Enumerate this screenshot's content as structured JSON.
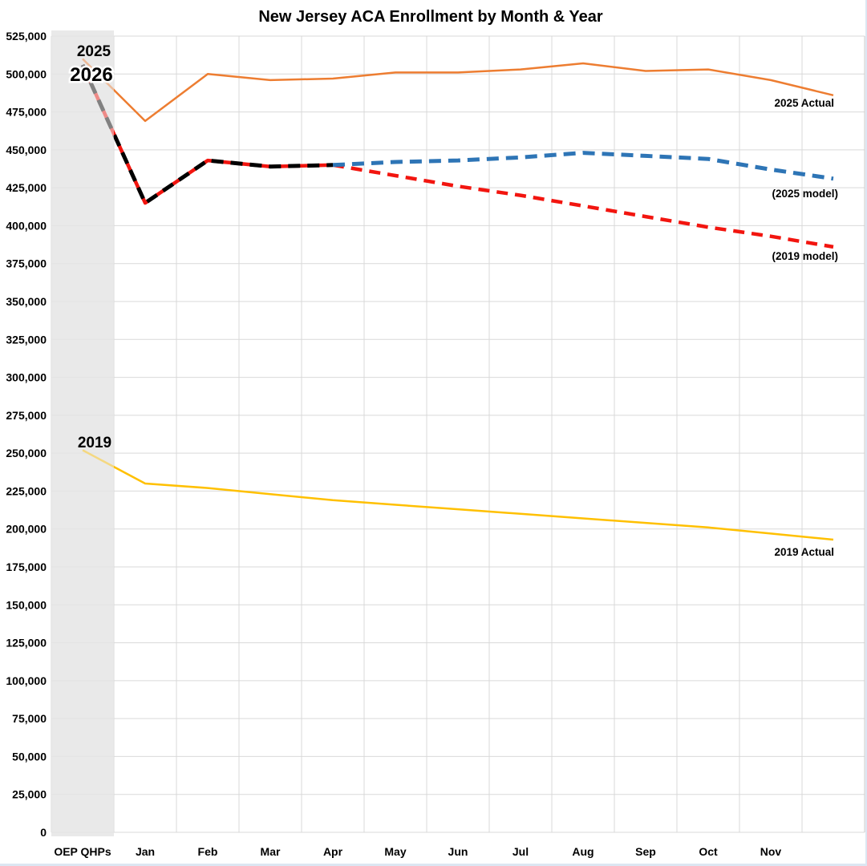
{
  "title": "New Jersey ACA Enrollment by Month & Year",
  "chart_data": {
    "type": "line",
    "title": "New Jersey ACA Enrollment by Month & Year",
    "xlabel": "",
    "ylabel": "",
    "ylim": [
      0,
      525000
    ],
    "ytick_step": 25000,
    "grid": true,
    "legend_position": "none",
    "highlight_band": {
      "category": "OEP QHPs",
      "color": "#e6e6e6"
    },
    "categories": [
      "OEP QHPs",
      "Jan",
      "Feb",
      "Mar",
      "Apr",
      "May",
      "Jun",
      "Jul",
      "Aug",
      "Sep",
      "Oct",
      "Nov",
      ""
    ],
    "y_ticks": [
      "0",
      "25,000",
      "50,000",
      "75,000",
      "100,000",
      "125,000",
      "150,000",
      "175,000",
      "200,000",
      "225,000",
      "250,000",
      "275,000",
      "300,000",
      "325,000",
      "350,000",
      "375,000",
      "400,000",
      "425,000",
      "450,000",
      "475,000",
      "500,000",
      "525,000"
    ],
    "series": [
      {
        "name": "2019-model",
        "label": "(2019 model)",
        "color": "#f2150f",
        "dash": true,
        "width": 4.5,
        "solid_until": 4,
        "values": [
          506000,
          415000,
          443000,
          439000,
          440000,
          433000,
          426000,
          420000,
          413000,
          406000,
          399000,
          393000,
          386000
        ]
      },
      {
        "name": "2025-model",
        "label": "(2025 model)",
        "color": "#2e75b6",
        "dash": true,
        "width": 5,
        "values": [
          null,
          null,
          null,
          null,
          440000,
          442000,
          443000,
          445000,
          448000,
          446000,
          444000,
          437000,
          431000
        ]
      },
      {
        "name": "2026-actual-to-date",
        "label": "2026",
        "color": "#000000",
        "dash": true,
        "width": 5,
        "values": [
          506000,
          415000,
          443000,
          439000,
          440000,
          null,
          null,
          null,
          null,
          null,
          null,
          null,
          null
        ]
      },
      {
        "name": "2025-actual",
        "label": "2025 Actual",
        "color": "#ed7d31",
        "dash": false,
        "width": 2.5,
        "values": [
          510000,
          469000,
          500000,
          496000,
          497000,
          501000,
          501000,
          503000,
          507000,
          502000,
          503000,
          496000,
          486000
        ]
      },
      {
        "name": "2019-actual",
        "label": "2019 Actual",
        "color": "#ffc000",
        "dash": false,
        "width": 2.5,
        "values": [
          252000,
          230000,
          227000,
          223000,
          219000,
          216000,
          213000,
          210000,
          207000,
          204000,
          201000,
          197000,
          193000
        ]
      }
    ],
    "annotations": [
      {
        "id": "label-2025",
        "text": "2025"
      },
      {
        "id": "label-2026",
        "text": "2026"
      },
      {
        "id": "label-2019",
        "text": "2019"
      },
      {
        "id": "label-2025-actual",
        "text": "2025 Actual"
      },
      {
        "id": "label-2025-model",
        "text": "(2025 model)"
      },
      {
        "id": "label-2019-model",
        "text": "(2019 model)"
      },
      {
        "id": "label-2019-actual",
        "text": "2019 Actual"
      }
    ],
    "colors": {
      "gridline": "#d9d9d9",
      "band": "#e6e6e6",
      "band_mute_overlay": "rgba(235,235,235,0.55)",
      "window_edge": "#dce6f2",
      "plot_border": "#c9c9c9"
    }
  }
}
